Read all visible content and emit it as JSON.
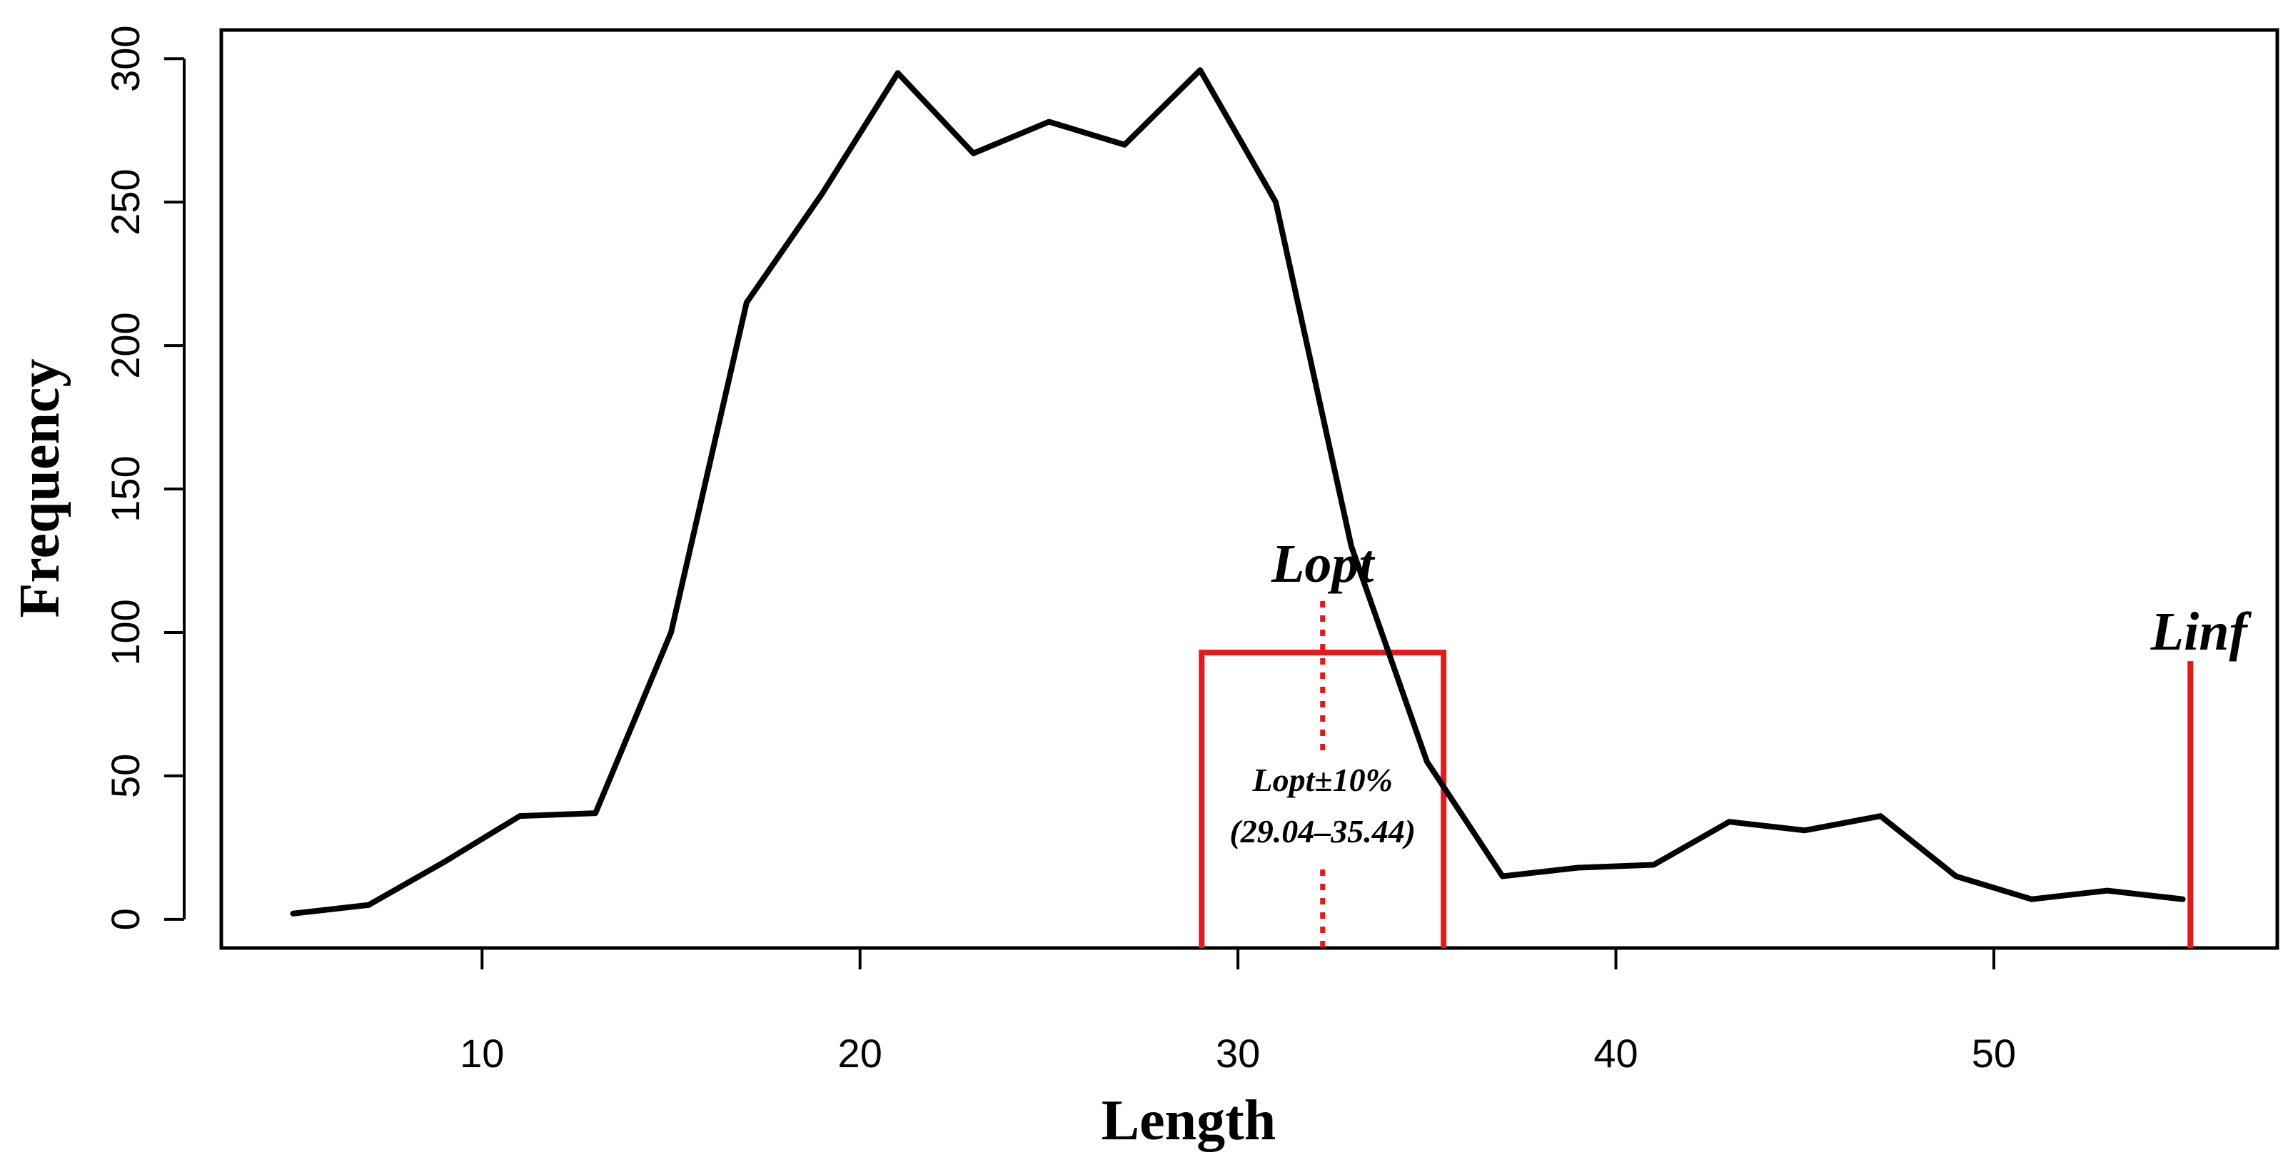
{
  "chart_data": {
    "type": "line",
    "xlabel": "Length",
    "ylabel": "Frequency",
    "xlim": [
      3.1,
      57.5
    ],
    "ylim": [
      -10,
      310
    ],
    "x_ticks": [
      10,
      20,
      30,
      40,
      50
    ],
    "y_ticks": [
      0,
      50,
      100,
      150,
      200,
      250,
      300
    ],
    "x_tick_labels": [
      "10",
      "20",
      "30",
      "40",
      "50"
    ],
    "y_tick_labels": [
      "0",
      "50",
      "100",
      "150",
      "200",
      "250",
      "300"
    ],
    "grid": false,
    "series": [
      {
        "color": "#000000",
        "x": [
          5,
          7,
          9,
          11,
          13,
          15,
          17,
          19,
          21,
          23,
          25,
          27,
          29,
          31,
          33,
          35,
          37,
          39,
          41,
          43,
          45,
          47,
          49,
          51,
          53,
          55
        ],
        "y": [
          2,
          5,
          20,
          36,
          37,
          100,
          215,
          253,
          295,
          267,
          278,
          270,
          296,
          250,
          130,
          55,
          15,
          18,
          19,
          34,
          31,
          36,
          15,
          7,
          10,
          7
        ]
      }
    ],
    "annotations": {
      "lopt_label": "Lopt",
      "lopt_x": 32.24,
      "range_label": "Lopt±10%",
      "range_text": "(29.04–35.44)",
      "range_x": [
        29.04,
        35.44
      ],
      "range_top": 93,
      "linf_label": "Linf",
      "linf_x": 55.2,
      "linf_top": 90,
      "marker_color": "#e31a1c"
    }
  }
}
